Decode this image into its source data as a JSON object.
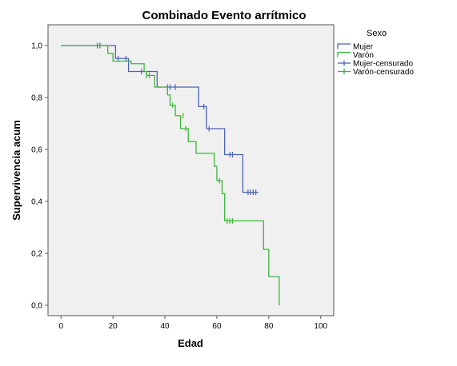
{
  "chart_data": {
    "type": "line",
    "title": "Combinado Evento arrítmico",
    "xlabel": "Edad",
    "ylabel": "Supervivencia acum",
    "xlim": [
      -5,
      105
    ],
    "ylim": [
      -0.04,
      1.08
    ],
    "xticks": [
      0,
      20,
      40,
      60,
      80,
      100
    ],
    "xtick_labels": [
      "0",
      "20",
      "40",
      "60",
      "80",
      "100"
    ],
    "yticks": [
      0.0,
      0.2,
      0.4,
      0.6,
      0.8,
      1.0
    ],
    "ytick_labels": [
      "0,0",
      "0,2",
      "0,4",
      "0,6",
      "0,8",
      "1,0"
    ],
    "grid": false,
    "legend": {
      "title": "Sexo",
      "position": "right",
      "entries": [
        "Mujer",
        "Varón",
        "Mujer-censurado",
        "Varón-censurado"
      ]
    },
    "series": [
      {
        "name": "Mujer",
        "color": "#4a63b4",
        "steps": [
          [
            0,
            1.0
          ],
          [
            21,
            0.95
          ],
          [
            26,
            0.9
          ],
          [
            37,
            0.84
          ],
          [
            53,
            0.765
          ],
          [
            56,
            0.68
          ],
          [
            63,
            0.58
          ],
          [
            70,
            0.435
          ],
          [
            76,
            0.435
          ]
        ],
        "censored": [
          [
            14,
            1.0
          ],
          [
            15,
            1.0
          ],
          [
            22,
            0.95
          ],
          [
            25,
            0.95
          ],
          [
            31,
            0.9
          ],
          [
            41,
            0.84
          ],
          [
            42,
            0.84
          ],
          [
            44,
            0.84
          ],
          [
            55,
            0.765
          ],
          [
            57,
            0.68
          ],
          [
            65,
            0.58
          ],
          [
            66,
            0.58
          ],
          [
            72,
            0.435
          ],
          [
            73,
            0.435
          ],
          [
            74,
            0.435
          ],
          [
            75,
            0.435
          ]
        ]
      },
      {
        "name": "Varón",
        "color": "#3bb63b",
        "steps": [
          [
            0,
            1.0
          ],
          [
            18,
            0.97
          ],
          [
            20,
            0.94
          ],
          [
            27,
            0.93
          ],
          [
            32,
            0.9
          ],
          [
            33,
            0.885
          ],
          [
            36,
            0.84
          ],
          [
            41,
            0.81
          ],
          [
            42,
            0.77
          ],
          [
            44,
            0.73
          ],
          [
            46,
            0.68
          ],
          [
            49,
            0.63
          ],
          [
            52,
            0.585
          ],
          [
            59,
            0.535
          ],
          [
            60,
            0.48
          ],
          [
            62,
            0.43
          ],
          [
            63,
            0.325
          ],
          [
            78,
            0.215
          ],
          [
            80,
            0.11
          ],
          [
            84,
            0.0
          ]
        ],
        "censored": [
          [
            33,
            0.885
          ],
          [
            34,
            0.885
          ],
          [
            43,
            0.77
          ],
          [
            47,
            0.73
          ],
          [
            48,
            0.68
          ],
          [
            61,
            0.48
          ],
          [
            64,
            0.325
          ],
          [
            65,
            0.325
          ],
          [
            66,
            0.325
          ]
        ]
      }
    ]
  }
}
